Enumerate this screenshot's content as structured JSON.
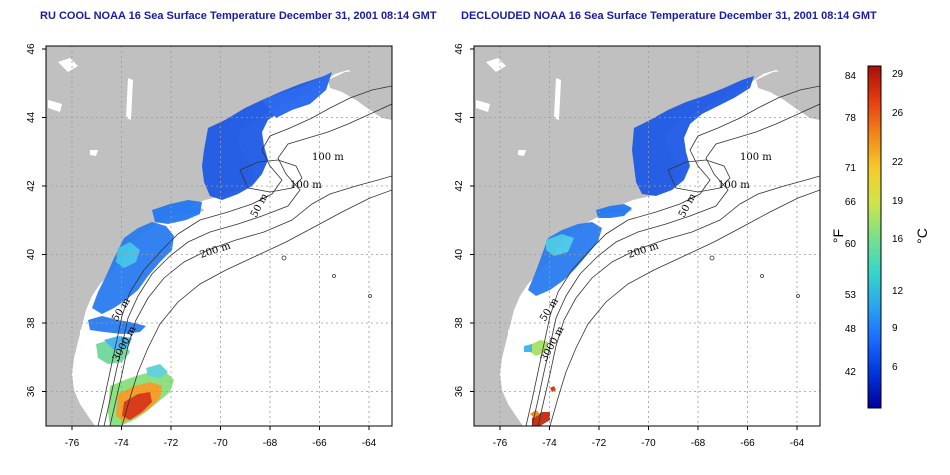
{
  "panels": [
    {
      "title": "RU COOL NOAA 16 Sea Surface Temperature December 31, 2001 08:14 GMT",
      "lat_ticks": [
        "36",
        "38",
        "40",
        "42",
        "44",
        "46"
      ],
      "lon_ticks": [
        "-76",
        "-74",
        "-72",
        "-70",
        "-68",
        "-66",
        "-64"
      ],
      "contour_labels": [
        "100 m",
        "100 m",
        "50 m",
        "200 m",
        "50 m",
        "3000 m"
      ]
    },
    {
      "title": "DECLOUDED NOAA 16 Sea Surface Temperature December 31, 2001 08:14 GMT",
      "lat_ticks": [
        "36",
        "38",
        "40",
        "42",
        "44",
        "46"
      ],
      "lon_ticks": [
        "-76",
        "-74",
        "-72",
        "-70",
        "-68",
        "-66",
        "-64"
      ],
      "contour_labels": [
        "100 m",
        "100 m",
        "50 m",
        "200 m",
        "50 m",
        "3000 m"
      ]
    }
  ],
  "colorbar": {
    "fahrenheit_label": "°F",
    "celsius_label": "°C",
    "fahrenheit_ticks": [
      "84",
      "78",
      "71",
      "66",
      "60",
      "53",
      "48",
      "42"
    ],
    "celsius_ticks": [
      "29",
      "26",
      "22",
      "19",
      "16",
      "12",
      "9",
      "6"
    ],
    "colors": [
      "#00009a",
      "#0033dd",
      "#1a6bff",
      "#2aa7ee",
      "#37d7c8",
      "#7be08a",
      "#cfe54a",
      "#f6cb2a",
      "#f2861a",
      "#e43d10",
      "#a80d0a"
    ]
  },
  "colors": {
    "land": "#c0c0c0",
    "ocean": "#ffffff",
    "grid": "#9a9a9a",
    "title": "#1a1aa6"
  }
}
